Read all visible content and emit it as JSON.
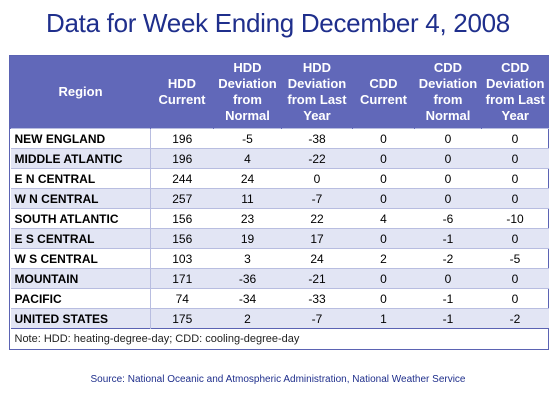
{
  "title": "Data for Week Ending December 4, 2008",
  "headers": {
    "region": "Region",
    "hdd_current": [
      "HDD",
      "Current"
    ],
    "hdd_dev_normal": [
      "HDD",
      "Deviation",
      "from",
      "Normal"
    ],
    "hdd_dev_last_year": [
      "HDD",
      "Deviation",
      "from Last",
      "Year"
    ],
    "cdd_current": [
      "CDD",
      "Current"
    ],
    "cdd_dev_normal": [
      "CDD",
      "Deviation",
      "from",
      "Normal"
    ],
    "cdd_dev_last_year": [
      "CDD",
      "Deviation",
      "from Last",
      "Year"
    ]
  },
  "rows": [
    {
      "region": "NEW ENGLAND",
      "hdd": "196",
      "hdd_norm": "-5",
      "hdd_last": "-38",
      "cdd": "0",
      "cdd_norm": "0",
      "cdd_last": "0"
    },
    {
      "region": "MIDDLE ATLANTIC",
      "hdd": "196",
      "hdd_norm": "4",
      "hdd_last": "-22",
      "cdd": "0",
      "cdd_norm": "0",
      "cdd_last": "0"
    },
    {
      "region": "E N CENTRAL",
      "hdd": "244",
      "hdd_norm": "24",
      "hdd_last": "0",
      "cdd": "0",
      "cdd_norm": "0",
      "cdd_last": "0"
    },
    {
      "region": "W N CENTRAL",
      "hdd": "257",
      "hdd_norm": "11",
      "hdd_last": "-7",
      "cdd": "0",
      "cdd_norm": "0",
      "cdd_last": "0"
    },
    {
      "region": "SOUTH ATLANTIC",
      "hdd": "156",
      "hdd_norm": "23",
      "hdd_last": "22",
      "cdd": "4",
      "cdd_norm": "-6",
      "cdd_last": "-10"
    },
    {
      "region": "E S CENTRAL",
      "hdd": "156",
      "hdd_norm": "19",
      "hdd_last": "17",
      "cdd": "0",
      "cdd_norm": "-1",
      "cdd_last": "0"
    },
    {
      "region": "W S CENTRAL",
      "hdd": "103",
      "hdd_norm": "3",
      "hdd_last": "24",
      "cdd": "2",
      "cdd_norm": "-2",
      "cdd_last": "-5"
    },
    {
      "region": "MOUNTAIN",
      "hdd": "171",
      "hdd_norm": "-36",
      "hdd_last": "-21",
      "cdd": "0",
      "cdd_norm": "0",
      "cdd_last": "0"
    },
    {
      "region": "PACIFIC",
      "hdd": "74",
      "hdd_norm": "-34",
      "hdd_last": "-33",
      "cdd": "0",
      "cdd_norm": "-1",
      "cdd_last": "0"
    },
    {
      "region": "UNITED STATES",
      "hdd": "175",
      "hdd_norm": "2",
      "hdd_last": "-7",
      "cdd": "1",
      "cdd_norm": "-1",
      "cdd_last": "-2"
    }
  ],
  "note": "Note: HDD: heating-degree-day; CDD: cooling-degree-day",
  "source": "Source:  National Oceanic and Atmospheric Administration, National Weather Service",
  "colors": {
    "header_bg": "#6168b9",
    "alt_row": "#e2e5f4",
    "title": "#1f2f8c"
  }
}
